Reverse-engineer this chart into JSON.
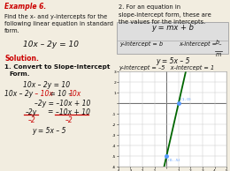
{
  "bg_color": "#f2ede0",
  "title": "Example 6.",
  "title_color": "#cc0000",
  "line_color": "#006600",
  "point_color": "#5599ff",
  "graph_xlim": [
    -4,
    5
  ],
  "graph_ylim": [
    -6,
    3
  ],
  "point1": [
    1,
    0
  ],
  "point2": [
    0,
    -5
  ],
  "right_header1": "2. For an equation in",
  "right_header2": "slope-intercept form, these are",
  "right_header3": "the values for the intercepts.",
  "box_eq": "y = mx + b",
  "box_yi": "y-intercept = b",
  "box_xi": "x-intercept = –",
  "box_xi2": "b",
  "box_xi3": "m",
  "eq_label": "y = 5x – 5",
  "intercept_label": "y-intercept = –5   x-intercept = 1"
}
